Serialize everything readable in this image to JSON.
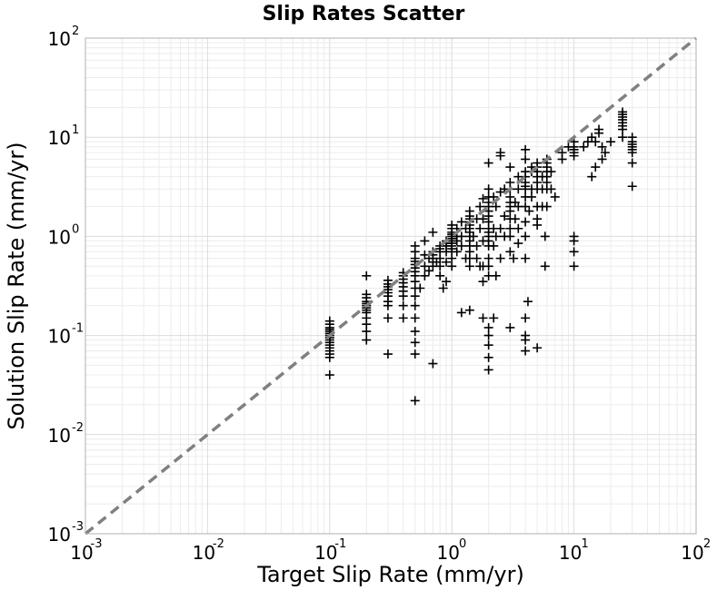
{
  "chart_data": {
    "type": "scatter",
    "title": "Slip Rates Scatter",
    "xlabel": "Target Slip Rate (mm/yr)",
    "ylabel": "Solution Slip Rate (mm/yr)",
    "xscale": "log",
    "yscale": "log",
    "xlim": [
      0.001,
      100
    ],
    "ylim": [
      0.001,
      100
    ],
    "x_ticks": [
      {
        "base": "10",
        "exp": "-3"
      },
      {
        "base": "10",
        "exp": "-2"
      },
      {
        "base": "10",
        "exp": "-1"
      },
      {
        "base": "10",
        "exp": "0"
      },
      {
        "base": "10",
        "exp": "1"
      },
      {
        "base": "10",
        "exp": "2"
      }
    ],
    "y_ticks": [
      {
        "base": "10",
        "exp": "-3"
      },
      {
        "base": "10",
        "exp": "-2"
      },
      {
        "base": "10",
        "exp": "-1"
      },
      {
        "base": "10",
        "exp": "0"
      },
      {
        "base": "10",
        "exp": "1"
      },
      {
        "base": "10",
        "exp": "2"
      }
    ],
    "grid": true,
    "marker": "plus",
    "marker_color": "#000000",
    "reference_line": {
      "style": "dashed",
      "color": "#808080",
      "from": [
        0.001,
        0.001
      ],
      "to": [
        100,
        100
      ]
    },
    "series": [
      {
        "points": [
          [
            0.1,
            0.04
          ],
          [
            0.1,
            0.06
          ],
          [
            0.1,
            0.065
          ],
          [
            0.1,
            0.07
          ],
          [
            0.1,
            0.075
          ],
          [
            0.1,
            0.08
          ],
          [
            0.1,
            0.085
          ],
          [
            0.1,
            0.09
          ],
          [
            0.1,
            0.095
          ],
          [
            0.1,
            0.1
          ],
          [
            0.1,
            0.105
          ],
          [
            0.1,
            0.11
          ],
          [
            0.1,
            0.115
          ],
          [
            0.1,
            0.12
          ],
          [
            0.1,
            0.13
          ],
          [
            0.1,
            0.14
          ],
          [
            0.2,
            0.09
          ],
          [
            0.2,
            0.11
          ],
          [
            0.2,
            0.13
          ],
          [
            0.2,
            0.15
          ],
          [
            0.2,
            0.17
          ],
          [
            0.2,
            0.18
          ],
          [
            0.2,
            0.19
          ],
          [
            0.2,
            0.2
          ],
          [
            0.2,
            0.21
          ],
          [
            0.2,
            0.22
          ],
          [
            0.2,
            0.24
          ],
          [
            0.2,
            0.26
          ],
          [
            0.2,
            0.4
          ],
          [
            0.3,
            0.065
          ],
          [
            0.3,
            0.15
          ],
          [
            0.3,
            0.2
          ],
          [
            0.3,
            0.22
          ],
          [
            0.3,
            0.25
          ],
          [
            0.3,
            0.27
          ],
          [
            0.3,
            0.29
          ],
          [
            0.3,
            0.31
          ],
          [
            0.3,
            0.33
          ],
          [
            0.3,
            0.36
          ],
          [
            0.4,
            0.15
          ],
          [
            0.4,
            0.2
          ],
          [
            0.4,
            0.25
          ],
          [
            0.4,
            0.28
          ],
          [
            0.4,
            0.31
          ],
          [
            0.4,
            0.34
          ],
          [
            0.4,
            0.37
          ],
          [
            0.4,
            0.4
          ],
          [
            0.4,
            0.43
          ],
          [
            0.5,
            0.022
          ],
          [
            0.5,
            0.065
          ],
          [
            0.5,
            0.085
          ],
          [
            0.5,
            0.11
          ],
          [
            0.5,
            0.15
          ],
          [
            0.5,
            0.2
          ],
          [
            0.5,
            0.25
          ],
          [
            0.5,
            0.3
          ],
          [
            0.5,
            0.35
          ],
          [
            0.5,
            0.4
          ],
          [
            0.5,
            0.44
          ],
          [
            0.5,
            0.48
          ],
          [
            0.5,
            0.52
          ],
          [
            0.5,
            0.56
          ],
          [
            0.5,
            0.6
          ],
          [
            0.5,
            0.7
          ],
          [
            0.5,
            0.8
          ],
          [
            0.55,
            0.3
          ],
          [
            0.6,
            0.4
          ],
          [
            0.6,
            0.5
          ],
          [
            0.6,
            0.65
          ],
          [
            0.6,
            0.9
          ],
          [
            0.65,
            0.45
          ],
          [
            0.65,
            0.6
          ],
          [
            0.7,
            0.052
          ],
          [
            0.7,
            0.5
          ],
          [
            0.7,
            0.55
          ],
          [
            0.7,
            0.6
          ],
          [
            0.7,
            0.65
          ],
          [
            0.7,
            0.7
          ],
          [
            0.7,
            1.1
          ],
          [
            0.75,
            0.55
          ],
          [
            0.8,
            0.5
          ],
          [
            0.8,
            0.6
          ],
          [
            0.8,
            0.7
          ],
          [
            0.8,
            0.75
          ],
          [
            0.8,
            0.8
          ],
          [
            0.8,
            0.4
          ],
          [
            0.85,
            0.3
          ],
          [
            0.9,
            0.55
          ],
          [
            0.9,
            0.7
          ],
          [
            0.9,
            0.8
          ],
          [
            0.9,
            0.85
          ],
          [
            0.9,
            0.9
          ],
          [
            0.9,
            0.35
          ],
          [
            1,
            0.7
          ],
          [
            1,
            0.75
          ],
          [
            1,
            0.8
          ],
          [
            1,
            0.85
          ],
          [
            1,
            0.9
          ],
          [
            1,
            0.95
          ],
          [
            1,
            1
          ],
          [
            1,
            1.05
          ],
          [
            1,
            1.1
          ],
          [
            1,
            1.2
          ],
          [
            1,
            1.3
          ],
          [
            1,
            0.5
          ],
          [
            1,
            0.6
          ],
          [
            1.1,
            0.7
          ],
          [
            1.1,
            0.9
          ],
          [
            1.1,
            1
          ],
          [
            1.1,
            1.2
          ],
          [
            1.2,
            0.8
          ],
          [
            1.2,
            1
          ],
          [
            1.2,
            1.4
          ],
          [
            1.2,
            0.17
          ],
          [
            1.3,
            0.6
          ],
          [
            1.3,
            1.2
          ],
          [
            1.4,
            0.5
          ],
          [
            1.4,
            0.6
          ],
          [
            1.4,
            0.7
          ],
          [
            1.4,
            0.8
          ],
          [
            1.4,
            0.9
          ],
          [
            1.4,
            1
          ],
          [
            1.4,
            1.1
          ],
          [
            1.4,
            1.2
          ],
          [
            1.4,
            1.3
          ],
          [
            1.4,
            1.4
          ],
          [
            1.4,
            1.5
          ],
          [
            1.4,
            1.6
          ],
          [
            1.4,
            1.8
          ],
          [
            1.4,
            0.18
          ],
          [
            1.5,
            1
          ],
          [
            1.6,
            0.6
          ],
          [
            1.6,
            0.8
          ],
          [
            1.6,
            1.5
          ],
          [
            1.7,
            0.5
          ],
          [
            1.7,
            1.2
          ],
          [
            1.7,
            2
          ],
          [
            1.8,
            0.15
          ],
          [
            1.8,
            0.35
          ],
          [
            1.8,
            0.5
          ],
          [
            1.8,
            0.9
          ],
          [
            1.8,
            1.5
          ],
          [
            1.8,
            2.4
          ],
          [
            2,
            0.045
          ],
          [
            2,
            0.06
          ],
          [
            2,
            0.08
          ],
          [
            2,
            0.1
          ],
          [
            2,
            0.12
          ],
          [
            2,
            0.4
          ],
          [
            2,
            0.5
          ],
          [
            2,
            0.6
          ],
          [
            2,
            0.8
          ],
          [
            2,
            0.9
          ],
          [
            2,
            1
          ],
          [
            2,
            1.1
          ],
          [
            2,
            1.2
          ],
          [
            2,
            1.4
          ],
          [
            2,
            1.6
          ],
          [
            2,
            1.8
          ],
          [
            2,
            2
          ],
          [
            2,
            2.2
          ],
          [
            2,
            2.5
          ],
          [
            2,
            3
          ],
          [
            2,
            5.5
          ],
          [
            2.2,
            0.15
          ],
          [
            2.2,
            0.8
          ],
          [
            2.2,
            1.2
          ],
          [
            2.2,
            2.5
          ],
          [
            2.3,
            0.4
          ],
          [
            2.3,
            1
          ],
          [
            2.3,
            2
          ],
          [
            2.5,
            0.6
          ],
          [
            2.5,
            1.2
          ],
          [
            2.5,
            2.8
          ],
          [
            2.5,
            6.5
          ],
          [
            2.5,
            7
          ],
          [
            2.7,
            1
          ],
          [
            2.7,
            1.6
          ],
          [
            2.7,
            3
          ],
          [
            3,
            0.7
          ],
          [
            3,
            1
          ],
          [
            3,
            1.2
          ],
          [
            3,
            1.5
          ],
          [
            3,
            1.8
          ],
          [
            3,
            2
          ],
          [
            3,
            2.2
          ],
          [
            3,
            2.5
          ],
          [
            3,
            3
          ],
          [
            3,
            3.5
          ],
          [
            3,
            5
          ],
          [
            3,
            0.12
          ],
          [
            3.2,
            0.6
          ],
          [
            3.3,
            1.5
          ],
          [
            3.3,
            2.2
          ],
          [
            3.5,
            0.85
          ],
          [
            3.5,
            1.2
          ],
          [
            3.5,
            2
          ],
          [
            3.5,
            3
          ],
          [
            3.5,
            4
          ],
          [
            4,
            0.09
          ],
          [
            4,
            0.1
          ],
          [
            4,
            0.15
          ],
          [
            4,
            0.6
          ],
          [
            4,
            1
          ],
          [
            4,
            1.4
          ],
          [
            4,
            2
          ],
          [
            4,
            2.5
          ],
          [
            4,
            3
          ],
          [
            4,
            3.2
          ],
          [
            4,
            3.5
          ],
          [
            4,
            4
          ],
          [
            4,
            4.5
          ],
          [
            4,
            6
          ],
          [
            4,
            7.5
          ],
          [
            4,
            0.07
          ],
          [
            4.2,
            0.22
          ],
          [
            4.3,
            1.8
          ],
          [
            4.5,
            3
          ],
          [
            4.5,
            4.5
          ],
          [
            4.5,
            5
          ],
          [
            4.5,
            2.5
          ],
          [
            5,
            0.075
          ],
          [
            5,
            1.5
          ],
          [
            5,
            2
          ],
          [
            5,
            3
          ],
          [
            5,
            3.5
          ],
          [
            5,
            4
          ],
          [
            5,
            4.5
          ],
          [
            5,
            5
          ],
          [
            5,
            5.5
          ],
          [
            5,
            1.3
          ],
          [
            5.5,
            3
          ],
          [
            5.5,
            4
          ],
          [
            5.5,
            2
          ],
          [
            5.8,
            0.5
          ],
          [
            5.8,
            1
          ],
          [
            6,
            2
          ],
          [
            6,
            3
          ],
          [
            6,
            3.5
          ],
          [
            6,
            4
          ],
          [
            6,
            4.5
          ],
          [
            6,
            5
          ],
          [
            6,
            5.5
          ],
          [
            6,
            6
          ],
          [
            6.5,
            3
          ],
          [
            6.5,
            4.5
          ],
          [
            7,
            2.5
          ],
          [
            8,
            6
          ],
          [
            8,
            7
          ],
          [
            9,
            8
          ],
          [
            10,
            6.5
          ],
          [
            10,
            7
          ],
          [
            10,
            7.5
          ],
          [
            10,
            8
          ],
          [
            10,
            9
          ],
          [
            10,
            0.5
          ],
          [
            10,
            0.7
          ],
          [
            10,
            0.9
          ],
          [
            10,
            1
          ],
          [
            12,
            8
          ],
          [
            13,
            9
          ],
          [
            14,
            10
          ],
          [
            14,
            4
          ],
          [
            15,
            5
          ],
          [
            15,
            9
          ],
          [
            16,
            11
          ],
          [
            16,
            12
          ],
          [
            17,
            8
          ],
          [
            17,
            6
          ],
          [
            18,
            7
          ],
          [
            20,
            9
          ],
          [
            25,
            10
          ],
          [
            25,
            12
          ],
          [
            25,
            13
          ],
          [
            25,
            14
          ],
          [
            25,
            15
          ],
          [
            25,
            16
          ],
          [
            25,
            17
          ],
          [
            25,
            18
          ],
          [
            30,
            3.2
          ],
          [
            30,
            5.5
          ],
          [
            30,
            7
          ],
          [
            30,
            7.5
          ],
          [
            30,
            8
          ],
          [
            30,
            8.5
          ],
          [
            30,
            9
          ],
          [
            30,
            10
          ]
        ]
      }
    ]
  }
}
